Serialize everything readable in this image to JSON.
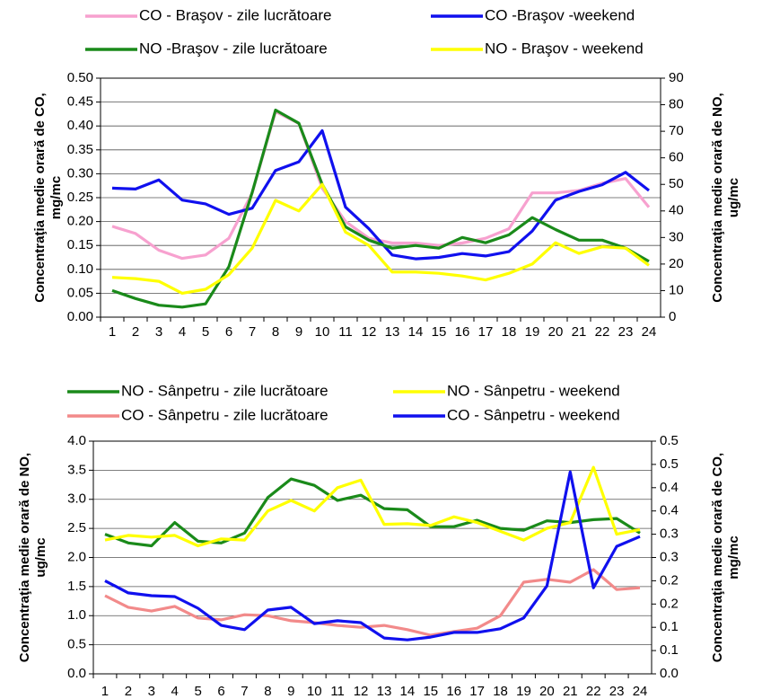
{
  "chart_data": [
    {
      "type": "line",
      "legend": "top",
      "grid": true,
      "ylabel": [
        "Concentraţia medie orară de CO,",
        "mg/mc"
      ],
      "y2label": [
        "Concentraţia medie orară de NO,",
        "ug/mc"
      ],
      "categories": [
        1,
        2,
        3,
        4,
        5,
        6,
        7,
        8,
        9,
        10,
        11,
        12,
        13,
        14,
        15,
        16,
        17,
        18,
        19,
        20,
        21,
        22,
        23,
        24
      ],
      "ylim": [
        0,
        0.5
      ],
      "yticks": [
        {
          "value": 0,
          "label": "0.00"
        },
        0.05,
        {
          "value": 0.1,
          "label": "0.10"
        },
        0.15,
        {
          "value": 0.2,
          "label": "0.20"
        },
        0.25,
        {
          "value": 0.3,
          "label": "0.30"
        },
        0.35,
        {
          "value": 0.4,
          "label": "0.40"
        },
        0.45,
        {
          "value": 0.5,
          "label": "0.50"
        }
      ],
      "y2lim": [
        0,
        90
      ],
      "y2ticks": [
        0,
        10,
        20,
        30,
        40,
        50,
        60,
        70,
        80,
        90
      ],
      "series": [
        {
          "name": "CO - Braşov - zile lucrătoare",
          "color": "#f7a1cf",
          "values": [
            0.19,
            0.175,
            0.14,
            0.123,
            0.13,
            0.165,
            0.26,
            0.43,
            0.405,
            0.27,
            0.2,
            0.165,
            0.155,
            0.155,
            0.15,
            0.155,
            0.165,
            0.185,
            0.26,
            0.26,
            0.265,
            0.28,
            0.29,
            0.23
          ]
        },
        {
          "name": "CO -Braşov -weekend",
          "color": "#1010ee",
          "values": [
            0.27,
            0.268,
            0.287,
            0.245,
            0.237,
            0.215,
            0.228,
            0.307,
            0.325,
            0.39,
            0.23,
            0.185,
            0.13,
            0.122,
            0.125,
            0.133,
            0.128,
            0.137,
            0.18,
            0.245,
            0.263,
            0.277,
            0.303,
            0.265
          ]
        },
        {
          "name": "NO -Braşov - zile lucrătoare",
          "color": "#1a8a1a",
          "axis": "y2",
          "values": [
            10,
            7,
            4.5,
            3.8,
            5,
            19,
            47,
            78,
            73,
            50,
            34,
            29,
            26,
            27,
            26,
            30,
            28,
            31,
            37.5,
            33,
            29,
            29,
            26,
            21
          ]
        },
        {
          "name": "NO - Braşov - weekend",
          "color": "#ffff00",
          "axis": "y2",
          "values": [
            15,
            14.5,
            13.5,
            9,
            10.5,
            16,
            26,
            44,
            40,
            50,
            32,
            27,
            17,
            17,
            16.5,
            15.5,
            14,
            16.5,
            20,
            28,
            24,
            26.5,
            26,
            19.5
          ]
        }
      ]
    },
    {
      "type": "line",
      "legend": "top",
      "grid": true,
      "ylabel": [
        "Concentraţia medie orară de NO,",
        "ug/mc"
      ],
      "y2label": [
        "Concentraţia medie orară de CO,",
        "mg/mc"
      ],
      "categories": [
        1,
        2,
        3,
        4,
        5,
        6,
        7,
        8,
        9,
        10,
        11,
        12,
        13,
        14,
        15,
        16,
        17,
        18,
        19,
        20,
        21,
        22,
        23,
        24
      ],
      "ylim": [
        0,
        4
      ],
      "yticks": [
        {
          "value": 0,
          "label": "0.0"
        },
        0.5,
        {
          "value": 1,
          "label": "1.0"
        },
        1.5,
        {
          "value": 2,
          "label": "2.0"
        },
        2.5,
        {
          "value": 3,
          "label": "3.0"
        },
        3.5,
        {
          "value": 4,
          "label": "4.0"
        }
      ],
      "y2lim": [
        0,
        0.5
      ],
      "y2ticks": [
        {
          "value": 0,
          "label": "0.0"
        },
        {
          "value": 0.05,
          "label": "0.1"
        },
        0.1,
        {
          "value": 0.15,
          "label": "0.2"
        },
        0.2,
        {
          "value": 0.25,
          "label": "0.3"
        },
        0.3,
        {
          "value": 0.35,
          "label": "0.4"
        },
        0.4,
        {
          "value": 0.45,
          "label": "0.5"
        },
        0.5
      ],
      "series": [
        {
          "name": "NO - Sânpetru - zile lucrătoare",
          "color": "#1a8a1a",
          "values": [
            2.4,
            2.25,
            2.2,
            2.6,
            2.28,
            2.25,
            2.42,
            3.03,
            3.35,
            3.24,
            2.98,
            3.07,
            2.84,
            2.82,
            2.53,
            2.53,
            2.64,
            2.5,
            2.47,
            2.63,
            2.6,
            2.65,
            2.67,
            2.42
          ]
        },
        {
          "name": "NO - Sânpetru - weekend",
          "color": "#ffff00",
          "values": [
            2.3,
            2.38,
            2.35,
            2.38,
            2.2,
            2.32,
            2.3,
            2.8,
            2.98,
            2.8,
            3.2,
            3.33,
            2.57,
            2.58,
            2.55,
            2.7,
            2.6,
            2.45,
            2.3,
            2.5,
            2.6,
            3.55,
            2.4,
            2.48
          ]
        },
        {
          "name": "CO - Sânpetru - zile lucrătoare",
          "color": "#f28a8a",
          "axis": "y2",
          "values": [
            0.168,
            0.143,
            0.135,
            0.145,
            0.12,
            0.116,
            0.127,
            0.125,
            0.114,
            0.11,
            0.104,
            0.1,
            0.104,
            0.095,
            0.083,
            0.091,
            0.098,
            0.125,
            0.197,
            0.203,
            0.197,
            0.224,
            0.181,
            0.185
          ]
        },
        {
          "name": "CO - Sânpetru - weekend",
          "color": "#1010ee",
          "axis": "y2",
          "values": [
            0.2,
            0.174,
            0.168,
            0.166,
            0.141,
            0.104,
            0.095,
            0.137,
            0.143,
            0.108,
            0.114,
            0.11,
            0.077,
            0.073,
            0.079,
            0.089,
            0.089,
            0.097,
            0.12,
            0.189,
            0.434,
            0.185,
            0.274,
            0.295
          ]
        }
      ]
    }
  ]
}
